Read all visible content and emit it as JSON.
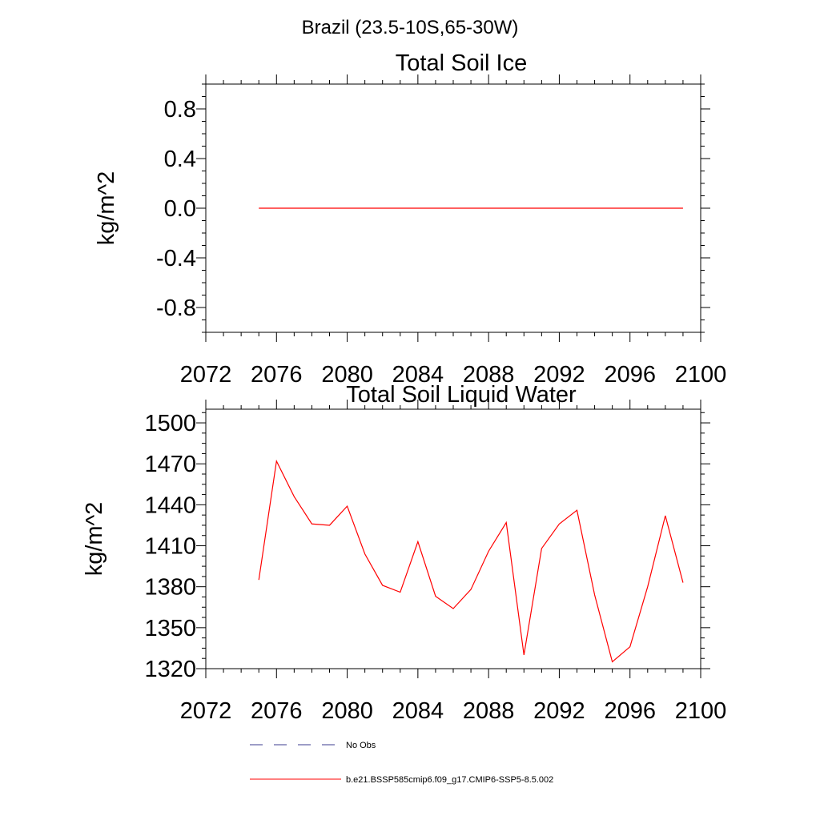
{
  "figure": {
    "suptitle": "Brazil (23.5-10S,65-30W)"
  },
  "chart_data": [
    {
      "type": "line",
      "title": "Total Soil Ice",
      "xlabel": "",
      "ylabel": "kg/m^2",
      "xlim": [
        2072,
        2100
      ],
      "ylim": [
        -1.0,
        1.0
      ],
      "xticks": [
        2072,
        2076,
        2080,
        2084,
        2088,
        2092,
        2096,
        2100
      ],
      "yticks": [
        -0.8,
        -0.4,
        0.0,
        0.4,
        0.8
      ],
      "ytick_labels": [
        "-0.8",
        "-0.4",
        "0.0",
        "0.4",
        "0.8"
      ],
      "grid": false,
      "series": [
        {
          "name": "b.e21.BSSP585cmip6.f09_g17.CMIP6-SSP5-8.5.002",
          "color": "#ff0000",
          "x": [
            2075,
            2076,
            2077,
            2078,
            2079,
            2080,
            2081,
            2082,
            2083,
            2084,
            2085,
            2086,
            2087,
            2088,
            2089,
            2090,
            2091,
            2092,
            2093,
            2094,
            2095,
            2096,
            2097,
            2098,
            2099
          ],
          "y": [
            0,
            0,
            0,
            0,
            0,
            0,
            0,
            0,
            0,
            0,
            0,
            0,
            0,
            0,
            0,
            0,
            0,
            0,
            0,
            0,
            0,
            0,
            0,
            0,
            0
          ]
        }
      ]
    },
    {
      "type": "line",
      "title": "Total Soil Liquid Water",
      "xlabel": "",
      "ylabel": "kg/m^2",
      "xlim": [
        2072,
        2100
      ],
      "ylim": [
        1320,
        1510
      ],
      "xticks": [
        2072,
        2076,
        2080,
        2084,
        2088,
        2092,
        2096,
        2100
      ],
      "yticks": [
        1320,
        1350,
        1380,
        1410,
        1440,
        1470,
        1500
      ],
      "ytick_labels": [
        "1320",
        "1350",
        "1380",
        "1410",
        "1440",
        "1470",
        "1500"
      ],
      "grid": false,
      "series": [
        {
          "name": "b.e21.BSSP585cmip6.f09_g17.CMIP6-SSP5-8.5.002",
          "color": "#ff0000",
          "x": [
            2075,
            2076,
            2077,
            2078,
            2079,
            2080,
            2081,
            2082,
            2083,
            2084,
            2085,
            2086,
            2087,
            2088,
            2089,
            2090,
            2091,
            2092,
            2093,
            2094,
            2095,
            2096,
            2097,
            2098,
            2099
          ],
          "y": [
            1385,
            1472,
            1446,
            1426,
            1425,
            1439,
            1404,
            1381,
            1376,
            1413,
            1373,
            1364,
            1378,
            1406,
            1427,
            1330,
            1408,
            1426,
            1436,
            1374,
            1325,
            1336,
            1380,
            1432,
            1383
          ]
        }
      ]
    }
  ],
  "legend": {
    "placement": "bottom",
    "entries": [
      {
        "label": "No Obs",
        "color": "#3b3b8f",
        "style": "dashed"
      },
      {
        "label": "b.e21.BSSP585cmip6.f09_g17.CMIP6-SSP5-8.5.002",
        "color": "#ff0000",
        "style": "solid"
      }
    ]
  }
}
